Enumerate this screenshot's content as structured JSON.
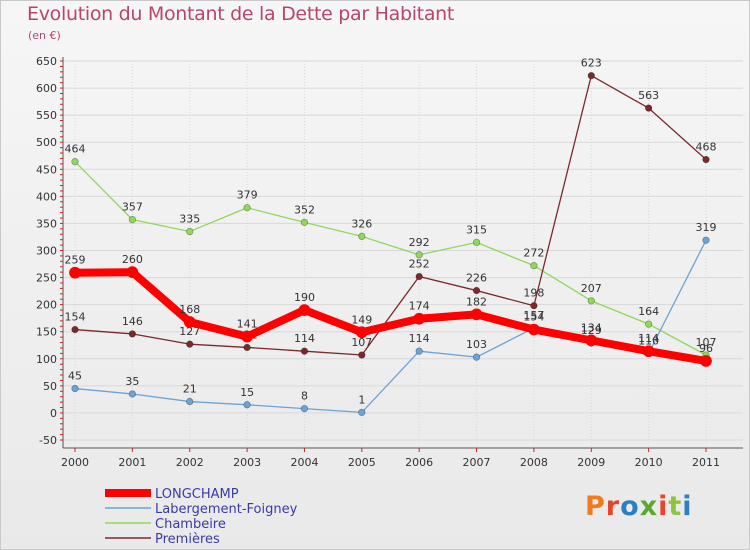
{
  "title": "Evolution du Montant de la Dette par Habitant",
  "unit": "(en €)",
  "logo": "Proxiti",
  "chart_data": {
    "type": "line",
    "title": "Evolution du Montant de la Dette par Habitant",
    "ylabel": "(en €)",
    "ylim": [
      -50,
      650
    ],
    "yticks": [
      -50,
      0,
      50,
      100,
      150,
      200,
      250,
      300,
      350,
      400,
      450,
      500,
      550,
      600,
      650
    ],
    "grid": true,
    "legend_position": "bottom-left",
    "x": [
      "2000",
      "2001",
      "2002",
      "2003",
      "2004",
      "2005",
      "2006",
      "2007",
      "2008",
      "2009",
      "2010",
      "2011"
    ],
    "series": [
      {
        "name": "LONGCHAMP",
        "color": "#ff0000",
        "values": [
          259,
          260,
          168,
          141,
          190,
          149,
          174,
          182,
          154,
          134,
          114,
          96
        ]
      },
      {
        "name": "Labergement-Foigney",
        "color": "#6ba3d6",
        "values": [
          45,
          35,
          21,
          15,
          8,
          1,
          114,
          103,
          157,
          129,
          110,
          319
        ]
      },
      {
        "name": "Chambeire",
        "color": "#8ed85a",
        "values": [
          464,
          357,
          335,
          379,
          352,
          326,
          292,
          315,
          272,
          207,
          164,
          107
        ]
      },
      {
        "name": "Premières",
        "color": "#7a2a2a",
        "values": [
          154,
          146,
          127,
          121,
          114,
          107,
          252,
          226,
          198,
          623,
          563,
          468
        ]
      }
    ]
  }
}
